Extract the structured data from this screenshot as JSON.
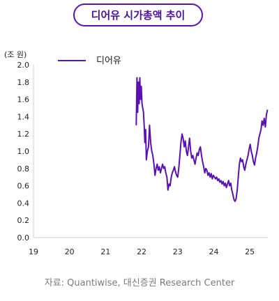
{
  "title": "디어유 시가총액 추이",
  "source": "자료: Quantiwise, 대신증권 Research Center",
  "colors": {
    "accent": "#5a11b3",
    "line": "#5a11b3"
  },
  "chart_data": {
    "type": "line",
    "ylabel": "(조 원)",
    "ylim": [
      0,
      2.0
    ],
    "yticks": [
      "2.0",
      "1.8",
      "1.6",
      "1.4",
      "1.2",
      "1.0",
      "0.8",
      "0.6",
      "0.4",
      "0.2",
      "0.0"
    ],
    "xlim": [
      19,
      25.5
    ],
    "xticks": [
      "19",
      "20",
      "21",
      "22",
      "23",
      "24",
      "25"
    ],
    "grid": false,
    "legend": "top-left",
    "series": [
      {
        "name": "디어유",
        "points": [
          [
            21.85,
            1.3
          ],
          [
            21.87,
            1.85
          ],
          [
            21.89,
            1.45
          ],
          [
            21.91,
            1.8
          ],
          [
            21.93,
            1.55
          ],
          [
            21.95,
            1.85
          ],
          [
            21.97,
            1.6
          ],
          [
            21.99,
            1.75
          ],
          [
            22.01,
            1.55
          ],
          [
            22.03,
            1.5
          ],
          [
            22.05,
            1.45
          ],
          [
            22.07,
            1.3
          ],
          [
            22.09,
            1.1
          ],
          [
            22.11,
            1.25
          ],
          [
            22.13,
            0.9
          ],
          [
            22.16,
            1.0
          ],
          [
            22.19,
            1.05
          ],
          [
            22.22,
            1.3
          ],
          [
            22.25,
            1.1
          ],
          [
            22.28,
            1.0
          ],
          [
            22.31,
            0.95
          ],
          [
            22.34,
            0.85
          ],
          [
            22.37,
            0.72
          ],
          [
            22.4,
            0.8
          ],
          [
            22.43,
            0.85
          ],
          [
            22.46,
            0.78
          ],
          [
            22.49,
            0.82
          ],
          [
            22.52,
            0.75
          ],
          [
            22.55,
            0.8
          ],
          [
            22.58,
            0.85
          ],
          [
            22.61,
            0.8
          ],
          [
            22.64,
            0.82
          ],
          [
            22.67,
            0.75
          ],
          [
            22.7,
            0.7
          ],
          [
            22.73,
            0.55
          ],
          [
            22.76,
            0.62
          ],
          [
            22.79,
            0.6
          ],
          [
            22.82,
            0.7
          ],
          [
            22.85,
            0.75
          ],
          [
            22.88,
            0.78
          ],
          [
            22.91,
            0.82
          ],
          [
            22.94,
            0.76
          ],
          [
            22.97,
            0.72
          ],
          [
            23.0,
            0.7
          ],
          [
            23.03,
            0.8
          ],
          [
            23.06,
            0.95
          ],
          [
            23.09,
            1.1
          ],
          [
            23.12,
            1.2
          ],
          [
            23.15,
            1.15
          ],
          [
            23.18,
            1.05
          ],
          [
            23.21,
            1.12
          ],
          [
            23.24,
            1.0
          ],
          [
            23.27,
            0.95
          ],
          [
            23.3,
            1.05
          ],
          [
            23.33,
            1.15
          ],
          [
            23.36,
            1.0
          ],
          [
            23.39,
            0.92
          ],
          [
            23.42,
            0.95
          ],
          [
            23.45,
            0.9
          ],
          [
            23.48,
            0.85
          ],
          [
            23.51,
            0.92
          ],
          [
            23.54,
            0.98
          ],
          [
            23.57,
            0.95
          ],
          [
            23.6,
            1.02
          ],
          [
            23.63,
            1.05
          ],
          [
            23.66,
            0.95
          ],
          [
            23.69,
            0.88
          ],
          [
            23.72,
            0.82
          ],
          [
            23.75,
            0.75
          ],
          [
            23.78,
            0.8
          ],
          [
            23.81,
            0.78
          ],
          [
            23.84,
            0.72
          ],
          [
            23.87,
            0.75
          ],
          [
            23.9,
            0.7
          ],
          [
            23.93,
            0.74
          ],
          [
            23.96,
            0.68
          ],
          [
            23.99,
            0.72
          ],
          [
            24.02,
            0.7
          ],
          [
            24.05,
            0.68
          ],
          [
            24.08,
            0.7
          ],
          [
            24.11,
            0.66
          ],
          [
            24.14,
            0.68
          ],
          [
            24.17,
            0.64
          ],
          [
            24.2,
            0.66
          ],
          [
            24.23,
            0.62
          ],
          [
            24.26,
            0.65
          ],
          [
            24.29,
            0.6
          ],
          [
            24.32,
            0.63
          ],
          [
            24.35,
            0.58
          ],
          [
            24.38,
            0.62
          ],
          [
            24.41,
            0.66
          ],
          [
            24.44,
            0.6
          ],
          [
            24.47,
            0.63
          ],
          [
            24.5,
            0.55
          ],
          [
            24.53,
            0.5
          ],
          [
            24.56,
            0.44
          ],
          [
            24.59,
            0.42
          ],
          [
            24.62,
            0.45
          ],
          [
            24.65,
            0.55
          ],
          [
            24.68,
            0.7
          ],
          [
            24.71,
            0.85
          ],
          [
            24.74,
            0.92
          ],
          [
            24.77,
            0.88
          ],
          [
            24.8,
            0.9
          ],
          [
            24.83,
            0.82
          ],
          [
            24.86,
            0.78
          ],
          [
            24.89,
            0.85
          ],
          [
            24.92,
            0.9
          ],
          [
            24.95,
            0.95
          ],
          [
            24.98,
            1.02
          ],
          [
            25.01,
            1.08
          ],
          [
            25.04,
            1.0
          ],
          [
            25.07,
            0.95
          ],
          [
            25.1,
            0.88
          ],
          [
            25.13,
            0.84
          ],
          [
            25.16,
            0.92
          ],
          [
            25.19,
            0.98
          ],
          [
            25.22,
            1.05
          ],
          [
            25.25,
            1.15
          ],
          [
            25.28,
            1.2
          ],
          [
            25.31,
            1.25
          ],
          [
            25.34,
            1.35
          ],
          [
            25.37,
            1.3
          ],
          [
            25.4,
            1.38
          ],
          [
            25.43,
            1.28
          ],
          [
            25.46,
            1.42
          ],
          [
            25.49,
            1.48
          ]
        ]
      }
    ]
  }
}
